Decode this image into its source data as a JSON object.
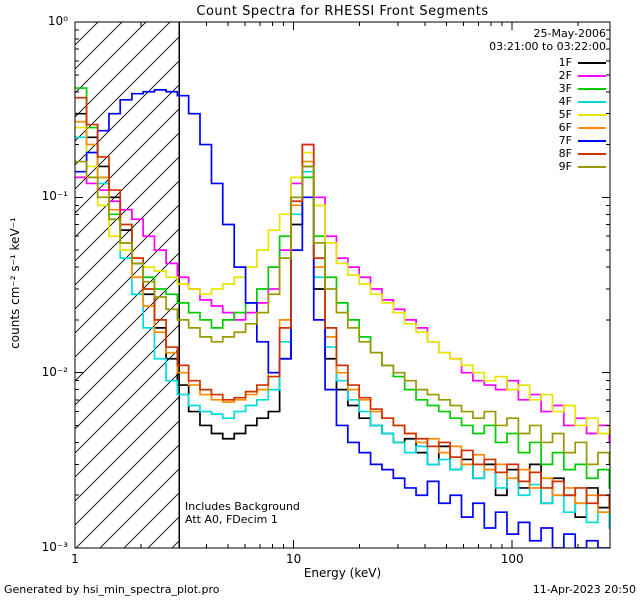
{
  "title": "Count Spectra for RHESSI Front Segments",
  "footer": {
    "left": "Generated by hsi_min_spectra_plot.pro",
    "right": "11-Apr-2023 20:50"
  },
  "annotations": {
    "date": "25-May-2006",
    "time_range": "03:21:00 to 03:22:00",
    "note1": "Includes Background",
    "note2": "Att A0, FDecim 1"
  },
  "chart_data": {
    "type": "line",
    "style": "histogram-step",
    "x_scale": "log",
    "y_scale": "log",
    "title": "Count Spectra for RHESSI Front Segments",
    "xlabel": "Energy (keV)",
    "ylabel": "counts cm^-2 s^-1 keV^-1",
    "ylabel_display": "counts cm⁻² s⁻¹ keV⁻¹",
    "xlim": [
      1,
      280
    ],
    "ylim": [
      0.001,
      1
    ],
    "x_ticks": [
      1,
      10,
      100
    ],
    "y_tick_exponents": [
      0,
      -1,
      -2,
      -3
    ],
    "y_tick_labels": [
      "10⁰",
      "10⁻¹",
      "10⁻²",
      "10⁻³"
    ],
    "legend_position": "top-right",
    "grid": false,
    "hatch_region_kev": [
      1,
      3
    ],
    "energy_bins_kev": [
      1.0,
      1.13,
      1.27,
      1.43,
      1.61,
      1.82,
      2.05,
      2.31,
      2.61,
      2.94,
      3.31,
      3.73,
      4.21,
      4.74,
      5.35,
      6.03,
      6.79,
      7.66,
      8.63,
      9.73,
      10.96,
      12.36,
      13.93,
      15.7,
      17.7,
      19.95,
      22.49,
      25.35,
      28.58,
      32.21,
      36.31,
      40.93,
      46.13,
      52.0,
      58.6,
      66.1,
      74.5,
      83.9,
      94.6,
      106.7,
      120.2,
      135.5,
      152.8,
      172.2,
      194.1,
      218.8,
      246.6,
      278.0
    ],
    "series": [
      {
        "name": "1F",
        "color": "#000000",
        "values": [
          0.3,
          0.22,
          0.15,
          0.1,
          0.065,
          0.042,
          0.028,
          0.018,
          0.012,
          0.0085,
          0.006,
          0.005,
          0.0045,
          0.0042,
          0.0045,
          0.005,
          0.0055,
          0.006,
          0.012,
          0.07,
          0.15,
          0.03,
          0.012,
          0.008,
          0.0065,
          0.0055,
          0.005,
          0.0045,
          0.004,
          0.0042,
          0.0035,
          0.003,
          0.0038,
          0.0028,
          0.0032,
          0.0025,
          0.003,
          0.002,
          0.0028,
          0.0022,
          0.003,
          0.0018,
          0.0025,
          0.002,
          0.0015,
          0.0022,
          0.0017,
          0.002
        ]
      },
      {
        "name": "2F",
        "color": "#ff00ff",
        "values": [
          0.13,
          0.12,
          0.11,
          0.095,
          0.085,
          0.075,
          0.06,
          0.05,
          0.042,
          0.035,
          0.03,
          0.026,
          0.024,
          0.022,
          0.02,
          0.022,
          0.025,
          0.03,
          0.05,
          0.12,
          0.2,
          0.1,
          0.06,
          0.045,
          0.04,
          0.035,
          0.03,
          0.026,
          0.023,
          0.02,
          0.018,
          0.015,
          0.013,
          0.012,
          0.01,
          0.009,
          0.0085,
          0.008,
          0.009,
          0.007,
          0.0075,
          0.006,
          0.0065,
          0.005,
          0.0055,
          0.0045,
          0.005,
          0.004
        ]
      },
      {
        "name": "3F",
        "color": "#00cc00",
        "values": [
          0.42,
          0.25,
          0.13,
          0.08,
          0.055,
          0.042,
          0.035,
          0.03,
          0.028,
          0.025,
          0.022,
          0.02,
          0.018,
          0.02,
          0.022,
          0.025,
          0.03,
          0.04,
          0.06,
          0.1,
          0.13,
          0.06,
          0.035,
          0.025,
          0.02,
          0.016,
          0.013,
          0.011,
          0.0095,
          0.008,
          0.007,
          0.0065,
          0.006,
          0.0055,
          0.005,
          0.0045,
          0.005,
          0.004,
          0.0045,
          0.0035,
          0.004,
          0.003,
          0.0035,
          0.0028,
          0.003,
          0.0025,
          0.0028,
          0.0022
        ]
      },
      {
        "name": "4F",
        "color": "#00dddd",
        "values": [
          0.22,
          0.18,
          0.12,
          0.075,
          0.045,
          0.028,
          0.018,
          0.012,
          0.009,
          0.0075,
          0.0065,
          0.006,
          0.0058,
          0.0055,
          0.006,
          0.0065,
          0.007,
          0.008,
          0.015,
          0.08,
          0.14,
          0.035,
          0.014,
          0.009,
          0.007,
          0.006,
          0.005,
          0.0045,
          0.004,
          0.0035,
          0.0038,
          0.003,
          0.0032,
          0.0028,
          0.003,
          0.0025,
          0.0028,
          0.0022,
          0.0025,
          0.002,
          0.0023,
          0.0018,
          0.002,
          0.0016,
          0.0018,
          0.0014,
          0.0016,
          0.0013
        ]
      },
      {
        "name": "5F",
        "color": "#e6e600",
        "values": [
          0.25,
          0.15,
          0.09,
          0.06,
          0.05,
          0.045,
          0.04,
          0.038,
          0.035,
          0.032,
          0.03,
          0.028,
          0.03,
          0.032,
          0.035,
          0.04,
          0.05,
          0.065,
          0.08,
          0.13,
          0.18,
          0.09,
          0.055,
          0.042,
          0.036,
          0.032,
          0.028,
          0.025,
          0.022,
          0.019,
          0.017,
          0.015,
          0.013,
          0.012,
          0.011,
          0.01,
          0.009,
          0.0095,
          0.008,
          0.0085,
          0.007,
          0.0075,
          0.006,
          0.0065,
          0.005,
          0.0055,
          0.0045,
          0.005
        ]
      },
      {
        "name": "6F",
        "color": "#ff8c00",
        "values": [
          0.27,
          0.2,
          0.13,
          0.085,
          0.055,
          0.035,
          0.024,
          0.017,
          0.013,
          0.01,
          0.0085,
          0.0075,
          0.007,
          0.0068,
          0.007,
          0.0075,
          0.008,
          0.01,
          0.02,
          0.09,
          0.16,
          0.04,
          0.016,
          0.01,
          0.008,
          0.007,
          0.006,
          0.0055,
          0.005,
          0.0045,
          0.004,
          0.0042,
          0.0035,
          0.0038,
          0.003,
          0.0034,
          0.0028,
          0.003,
          0.0025,
          0.0028,
          0.0022,
          0.0025,
          0.002,
          0.0022,
          0.0018,
          0.002,
          0.0016,
          0.0018
        ]
      },
      {
        "name": "7F",
        "color": "#0000ff",
        "values": [
          0.14,
          0.18,
          0.24,
          0.3,
          0.36,
          0.39,
          0.4,
          0.41,
          0.4,
          0.38,
          0.3,
          0.2,
          0.12,
          0.07,
          0.04,
          0.025,
          0.015,
          0.01,
          0.012,
          0.05,
          0.1,
          0.02,
          0.008,
          0.005,
          0.004,
          0.0035,
          0.003,
          0.0028,
          0.0025,
          0.0022,
          0.002,
          0.0024,
          0.0018,
          0.002,
          0.0015,
          0.0018,
          0.0013,
          0.0016,
          0.0012,
          0.0014,
          0.0011,
          0.0013,
          0.001,
          0.0012,
          0.001,
          0.0011,
          0.001,
          0.001
        ]
      },
      {
        "name": "8F",
        "color": "#cc3300",
        "values": [
          0.37,
          0.26,
          0.17,
          0.11,
          0.07,
          0.045,
          0.03,
          0.02,
          0.014,
          0.011,
          0.009,
          0.008,
          0.0075,
          0.007,
          0.0072,
          0.0078,
          0.0085,
          0.0095,
          0.018,
          0.095,
          0.2,
          0.045,
          0.018,
          0.011,
          0.0085,
          0.0072,
          0.0062,
          0.0055,
          0.005,
          0.0045,
          0.0042,
          0.0038,
          0.004,
          0.0033,
          0.0036,
          0.003,
          0.0032,
          0.0027,
          0.003,
          0.0024,
          0.0027,
          0.0022,
          0.0024,
          0.002,
          0.0022,
          0.0018,
          0.002,
          0.0017
        ]
      },
      {
        "name": "9F",
        "color": "#999900",
        "values": [
          0.16,
          0.13,
          0.1,
          0.075,
          0.055,
          0.042,
          0.033,
          0.027,
          0.023,
          0.02,
          0.018,
          0.016,
          0.015,
          0.016,
          0.017,
          0.019,
          0.022,
          0.028,
          0.045,
          0.1,
          0.15,
          0.055,
          0.03,
          0.022,
          0.018,
          0.015,
          0.013,
          0.011,
          0.01,
          0.009,
          0.008,
          0.0075,
          0.007,
          0.0065,
          0.006,
          0.0055,
          0.006,
          0.005,
          0.0055,
          0.0045,
          0.005,
          0.004,
          0.0045,
          0.0035,
          0.004,
          0.003,
          0.0035,
          0.003
        ]
      }
    ]
  }
}
